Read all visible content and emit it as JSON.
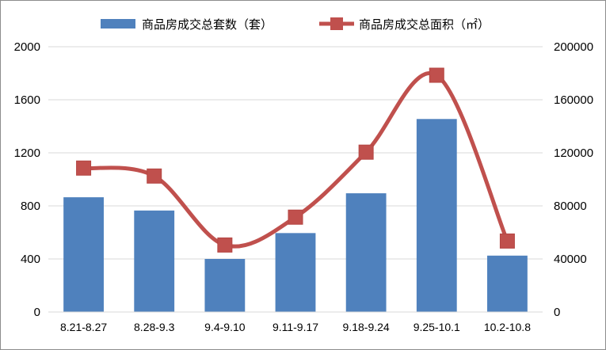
{
  "chart_data": {
    "type": "bar",
    "categories": [
      "8.21-8.27",
      "8.28-9.3",
      "9.4-9.10",
      "9.11-9.17",
      "9.18-9.24",
      "9.25-10.1",
      "10.2-10.8"
    ],
    "series": [
      {
        "name": "商品房成交总套数（套）",
        "type": "bar",
        "axis": "left",
        "color": "#4f81bd",
        "values": [
          865,
          765,
          400,
          595,
          895,
          1455,
          425
        ]
      },
      {
        "name": "商品房成交总面积（㎡）",
        "type": "line",
        "smooth": true,
        "marker": "square",
        "axis": "right",
        "color": "#c0504d",
        "values": [
          108500,
          102500,
          50500,
          71500,
          120500,
          178500,
          53500
        ]
      }
    ],
    "y_left": {
      "range": [
        0,
        2000
      ],
      "ticks": [
        0,
        400,
        800,
        1200,
        1600,
        2000
      ]
    },
    "y_right": {
      "range": [
        0,
        200000
      ],
      "ticks": [
        0,
        40000,
        80000,
        120000,
        160000,
        200000
      ]
    },
    "grid": true,
    "legend_position": "top"
  }
}
